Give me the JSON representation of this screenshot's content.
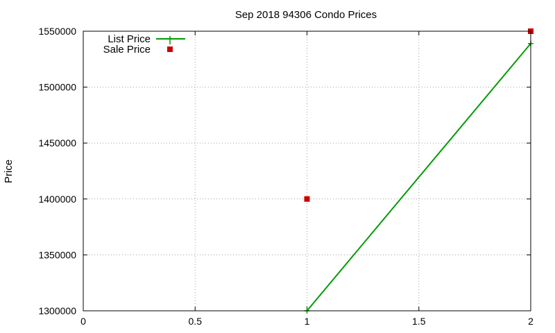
{
  "chart_data": {
    "type": "line",
    "title": "Sep 2018 94306 Condo Prices",
    "xlabel": "",
    "ylabel": "Price",
    "xlim": [
      0,
      2
    ],
    "ylim": [
      1300000,
      1550000
    ],
    "xticks": [
      0,
      0.5,
      1,
      1.5,
      2
    ],
    "xtick_labels": [
      "0",
      "0.5",
      "1",
      "1.5",
      "2"
    ],
    "yticks": [
      1300000,
      1350000,
      1400000,
      1450000,
      1500000,
      1550000
    ],
    "ytick_labels": [
      "1300000",
      "1350000",
      "1400000",
      "1450000",
      "1500000",
      "1550000"
    ],
    "grid": true,
    "legend_position": "top-left",
    "series": [
      {
        "name": "List Price",
        "style": "line-with-plus-markers",
        "color": "#009900",
        "x": [
          1,
          2
        ],
        "y": [
          1300000,
          1539000
        ]
      },
      {
        "name": "Sale Price",
        "style": "square-markers",
        "color": "#cc0000",
        "x": [
          1,
          2
        ],
        "y": [
          1400000,
          1550000
        ]
      }
    ]
  }
}
